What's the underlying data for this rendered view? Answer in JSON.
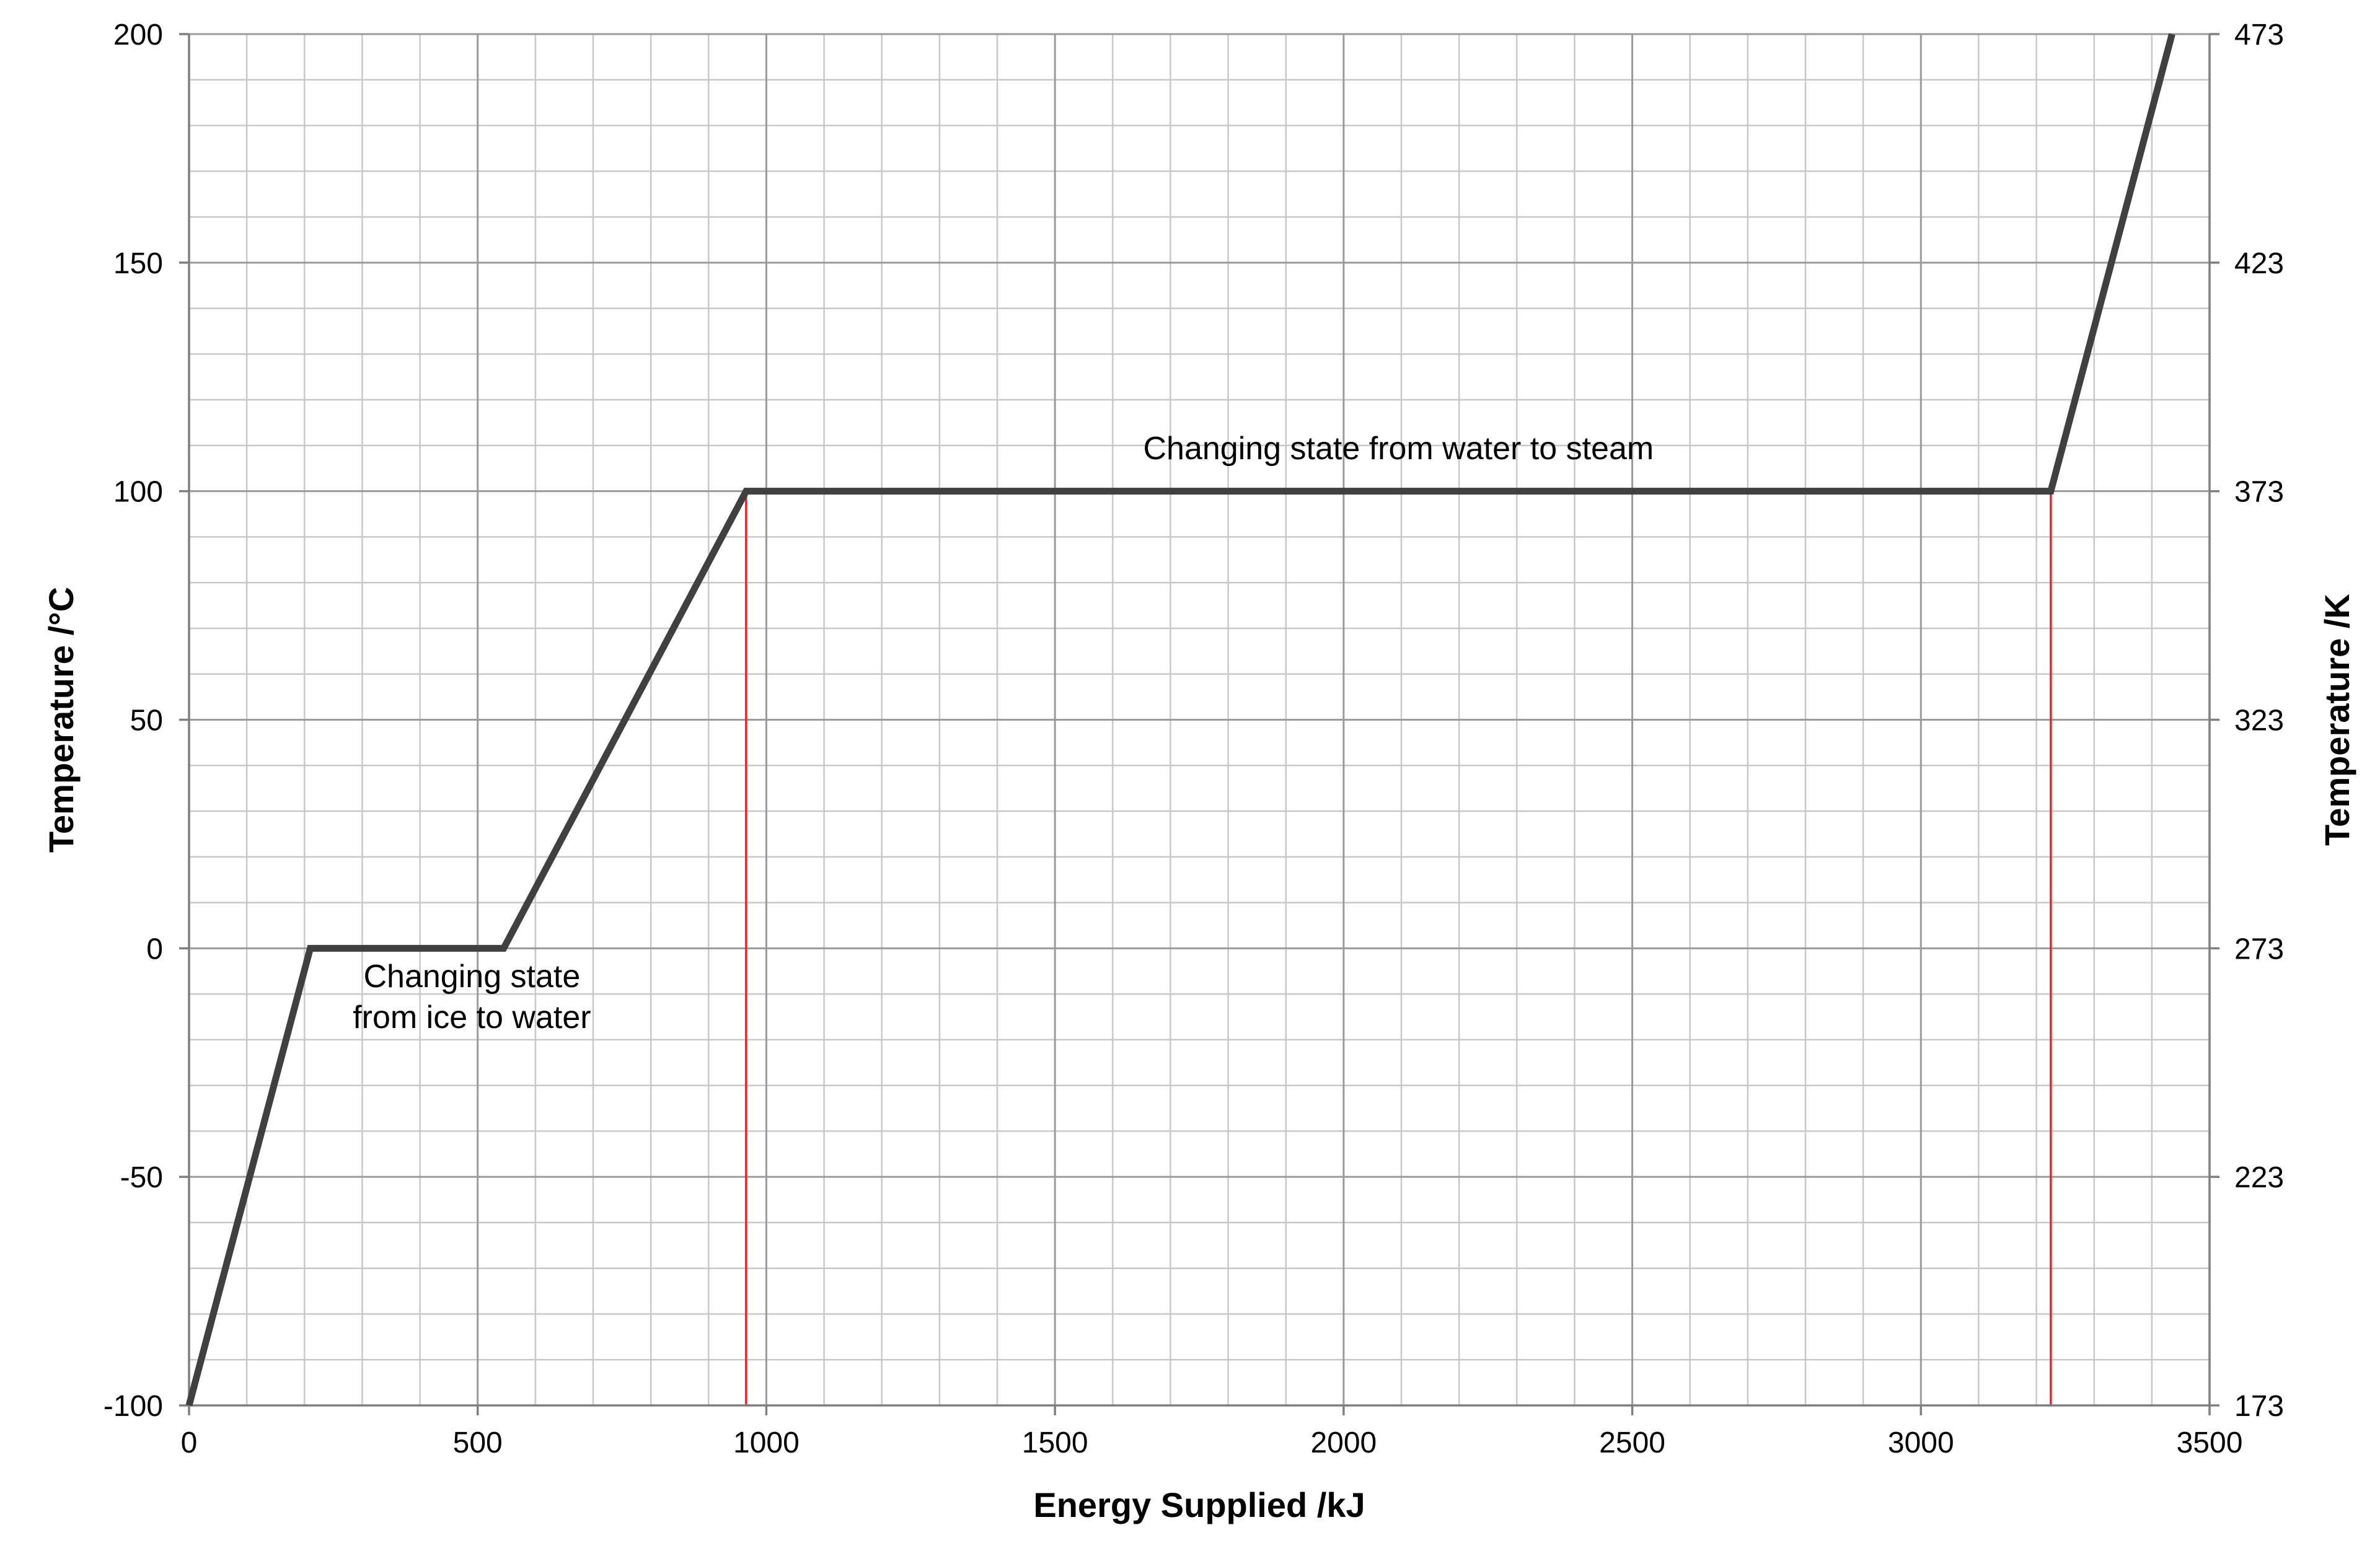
{
  "chart_data": {
    "type": "line",
    "xlabel": "Energy Supplied /kJ",
    "ylabel": "Temperature /°C",
    "y2label": "Temperature /K",
    "xlim": [
      0,
      3500
    ],
    "ylim": [
      -100,
      200
    ],
    "y2lim": [
      173,
      473
    ],
    "x_ticks": [
      0,
      500,
      1000,
      1500,
      2000,
      2500,
      3000,
      3500
    ],
    "y_ticks": [
      -100,
      -50,
      0,
      50,
      100,
      150,
      200
    ],
    "y2_ticks": [
      173,
      223,
      273,
      323,
      373,
      423,
      473
    ],
    "grid": true,
    "series": [
      {
        "x": [
          0,
          210,
          545,
          965,
          3225,
          3435
        ],
        "y": [
          -100,
          0,
          0,
          100,
          100,
          200
        ]
      }
    ],
    "vertical_markers": [
      965,
      3225
    ],
    "annotations": [
      {
        "lines": [
          "Changing state from water to steam"
        ],
        "x": 2095,
        "y": 107
      },
      {
        "lines": [
          "Changing  state",
          "from ice to water"
        ],
        "x": 490,
        "y": -8.5
      }
    ],
    "colors": {
      "line": "#404040",
      "marker": "#e8262b",
      "grid_major": "#9a9a9a",
      "grid_minor": "#c8c8c8",
      "axis": "#7f7f7f"
    }
  }
}
